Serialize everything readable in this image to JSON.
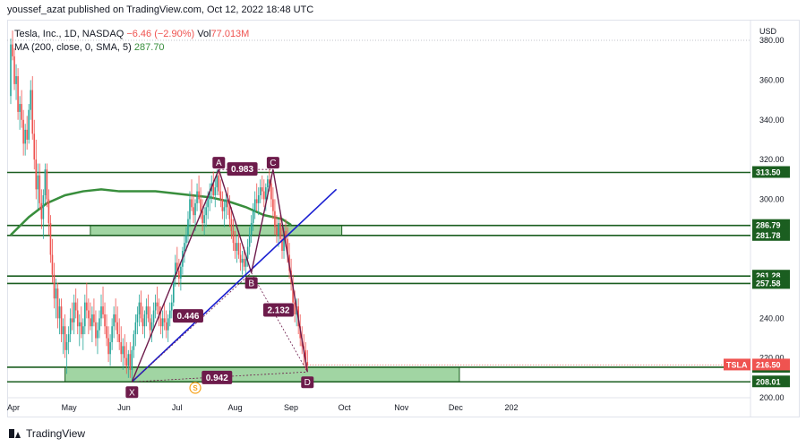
{
  "header": {
    "publisher_line": "youssef_azat published on TradingView.com, Oct 12, 2022 18:48 UTC"
  },
  "legend": {
    "symbol_line_title": "Tesla, Inc., 1D, NASDAQ",
    "change": "−6.46 (−2.90%)",
    "volume_label": "Vol",
    "volume_value": "77.013M",
    "ma_label": "MA (200, close, 0, SMA, 5)",
    "ma_value": "287.70"
  },
  "footer": {
    "brand": "TradingView"
  },
  "colors": {
    "up": "#26a69a",
    "down": "#ef5350",
    "ma": "#388e3c",
    "zone_fill": "#81c784",
    "level_line": "#1b5e20",
    "pattern": "#6d1b4b",
    "trend": "#1a1fd1",
    "tag_bg": "#6d1b4b",
    "price_tag_red": "#ef5350"
  },
  "chart_data": {
    "type": "candlestick",
    "currency": "USD",
    "ylim": [
      200,
      390
    ],
    "y_ticks": [
      "380.00",
      "360.00",
      "340.00",
      "320.00",
      "300.00",
      "240.00",
      "220.00",
      "200.00"
    ],
    "x_ticks": [
      "Apr",
      "May",
      "Jun",
      "Jul",
      "Aug",
      "Sep",
      "Oct",
      "Nov",
      "Dec",
      "202"
    ],
    "levels": [
      {
        "value": 313.5,
        "label": "313.50"
      },
      {
        "value": 286.79,
        "label": "286.79"
      },
      {
        "value": 281.78,
        "label": "281.78"
      },
      {
        "value": 261.28,
        "label": "261.28"
      },
      {
        "value": 257.58,
        "label": "257.58"
      },
      {
        "value": 215.36,
        "label": "215.36"
      },
      {
        "value": 208.01,
        "label": "208.01"
      }
    ],
    "zones": [
      {
        "from": 281.78,
        "to": 286.79,
        "start": "May 15",
        "end": "Oct 1"
      },
      {
        "from": 208.01,
        "to": 215.36,
        "start": "May 1",
        "end": "Dec 5"
      }
    ],
    "current_price": {
      "symbol": "TSLA",
      "value": 216.5,
      "label": "216.50"
    },
    "ma_200": {
      "points": [
        [
          0,
          282
        ],
        [
          10,
          291
        ],
        [
          20,
          298
        ],
        [
          30,
          302
        ],
        [
          40,
          304
        ],
        [
          50,
          305
        ],
        [
          60,
          304
        ],
        [
          70,
          304
        ],
        [
          80,
          304
        ],
        [
          90,
          303
        ],
        [
          100,
          302
        ],
        [
          110,
          301
        ],
        [
          120,
          299
        ],
        [
          130,
          296
        ],
        [
          140,
          292
        ],
        [
          150,
          290
        ],
        [
          155,
          287
        ]
      ]
    },
    "harmonic_pattern": {
      "points": [
        {
          "label": "X",
          "day": 67,
          "price": 208
        },
        {
          "label": "A",
          "day": 115,
          "price": 315
        },
        {
          "label": "B",
          "day": 133,
          "price": 263
        },
        {
          "label": "C",
          "day": 145,
          "price": 315
        },
        {
          "label": "D",
          "day": 164,
          "price": 213
        }
      ],
      "ratios": [
        {
          "label": "0.446",
          "day": 98,
          "price": 241
        },
        {
          "label": "0.983",
          "day": 128,
          "price": 315
        },
        {
          "label": "2.132",
          "day": 148,
          "price": 244
        },
        {
          "label": "0.942",
          "day": 114,
          "price": 210
        }
      ]
    },
    "trendline": {
      "from": [
        67,
        208
      ],
      "to": [
        180,
        305
      ]
    },
    "candles": [
      [
        0,
        352,
        381,
        348,
        378
      ],
      [
        1,
        378,
        385,
        370,
        372
      ],
      [
        2,
        372,
        376,
        355,
        358
      ],
      [
        3,
        358,
        368,
        350,
        362
      ],
      [
        4,
        362,
        366,
        340,
        344
      ],
      [
        5,
        344,
        352,
        335,
        348
      ],
      [
        6,
        348,
        355,
        336,
        340
      ],
      [
        7,
        340,
        345,
        322,
        328
      ],
      [
        8,
        328,
        338,
        322,
        335
      ],
      [
        9,
        335,
        342,
        325,
        330
      ],
      [
        10,
        330,
        348,
        328,
        345
      ],
      [
        11,
        345,
        360,
        340,
        355
      ],
      [
        12,
        355,
        362,
        330,
        333
      ],
      [
        13,
        333,
        340,
        315,
        320
      ],
      [
        14,
        320,
        330,
        300,
        305
      ],
      [
        15,
        305,
        318,
        295,
        312
      ],
      [
        16,
        312,
        318,
        295,
        298
      ],
      [
        17,
        298,
        305,
        285,
        290
      ],
      [
        18,
        290,
        305,
        280,
        302
      ],
      [
        19,
        302,
        318,
        298,
        315
      ],
      [
        20,
        315,
        318,
        296,
        300
      ],
      [
        21,
        300,
        305,
        282,
        288
      ],
      [
        22,
        288,
        292,
        268,
        272
      ],
      [
        23,
        272,
        280,
        258,
        262
      ],
      [
        24,
        262,
        268,
        245,
        250
      ],
      [
        25,
        250,
        260,
        240,
        255
      ],
      [
        26,
        255,
        258,
        235,
        240
      ],
      [
        27,
        240,
        250,
        232,
        246
      ],
      [
        28,
        246,
        250,
        228,
        232
      ],
      [
        29,
        232,
        240,
        222,
        236
      ],
      [
        30,
        236,
        242,
        220,
        224
      ],
      [
        31,
        224,
        232,
        212,
        228
      ],
      [
        32,
        228,
        236,
        222,
        232
      ],
      [
        33,
        232,
        245,
        228,
        240
      ],
      [
        34,
        240,
        248,
        234,
        238
      ],
      [
        35,
        238,
        252,
        232,
        248
      ],
      [
        36,
        248,
        255,
        240,
        244
      ],
      [
        37,
        244,
        250,
        232,
        236
      ],
      [
        38,
        236,
        242,
        226,
        238
      ],
      [
        39,
        238,
        246,
        230,
        232
      ],
      [
        40,
        232,
        240,
        224,
        236
      ],
      [
        41,
        236,
        252,
        232,
        248
      ],
      [
        42,
        248,
        258,
        240,
        244
      ],
      [
        43,
        244,
        250,
        232,
        240
      ],
      [
        44,
        240,
        248,
        234,
        236
      ],
      [
        45,
        236,
        246,
        228,
        242
      ],
      [
        46,
        242,
        250,
        236,
        238
      ],
      [
        47,
        238,
        244,
        226,
        230
      ],
      [
        48,
        230,
        238,
        222,
        234
      ],
      [
        49,
        234,
        244,
        230,
        240
      ],
      [
        50,
        240,
        252,
        236,
        246
      ],
      [
        51,
        246,
        256,
        240,
        242
      ],
      [
        52,
        242,
        248,
        232,
        236
      ],
      [
        53,
        236,
        242,
        226,
        230
      ],
      [
        54,
        230,
        236,
        218,
        222
      ],
      [
        55,
        222,
        232,
        216,
        228
      ],
      [
        56,
        228,
        240,
        224,
        236
      ],
      [
        57,
        236,
        246,
        230,
        242
      ],
      [
        58,
        242,
        250,
        234,
        238
      ],
      [
        59,
        238,
        246,
        228,
        232
      ],
      [
        60,
        232,
        240,
        224,
        228
      ],
      [
        61,
        228,
        236,
        218,
        222
      ],
      [
        62,
        222,
        230,
        214,
        226
      ],
      [
        63,
        226,
        232,
        216,
        220
      ],
      [
        64,
        220,
        228,
        212,
        216
      ],
      [
        65,
        216,
        224,
        210,
        222
      ],
      [
        66,
        222,
        228,
        210,
        214
      ],
      [
        67,
        214,
        226,
        208,
        224
      ],
      [
        68,
        224,
        234,
        220,
        232
      ],
      [
        69,
        232,
        242,
        226,
        238
      ],
      [
        70,
        238,
        246,
        232,
        242
      ],
      [
        71,
        242,
        252,
        236,
        248
      ],
      [
        72,
        248,
        254,
        238,
        240
      ],
      [
        73,
        240,
        246,
        232,
        236
      ],
      [
        74,
        236,
        244,
        230,
        242
      ],
      [
        75,
        242,
        250,
        236,
        246
      ],
      [
        76,
        246,
        252,
        238,
        240
      ],
      [
        77,
        240,
        246,
        230,
        234
      ],
      [
        78,
        234,
        242,
        228,
        238
      ],
      [
        79,
        238,
        248,
        234,
        244
      ],
      [
        80,
        244,
        252,
        240,
        248
      ],
      [
        81,
        248,
        256,
        242,
        246
      ],
      [
        82,
        246,
        250,
        236,
        240
      ],
      [
        83,
        240,
        246,
        232,
        236
      ],
      [
        84,
        236,
        244,
        230,
        240
      ],
      [
        85,
        240,
        248,
        234,
        238
      ],
      [
        86,
        238,
        244,
        230,
        234
      ],
      [
        87,
        234,
        242,
        228,
        240
      ],
      [
        88,
        240,
        248,
        236,
        244
      ],
      [
        89,
        244,
        252,
        240,
        248
      ],
      [
        90,
        248,
        262,
        246,
        260
      ],
      [
        91,
        260,
        272,
        256,
        268
      ],
      [
        92,
        268,
        276,
        262,
        264
      ],
      [
        93,
        264,
        270,
        256,
        260
      ],
      [
        94,
        260,
        268,
        254,
        266
      ],
      [
        95,
        266,
        276,
        262,
        274
      ],
      [
        96,
        274,
        282,
        268,
        278
      ],
      [
        97,
        278,
        286,
        274,
        282
      ],
      [
        98,
        282,
        294,
        278,
        290
      ],
      [
        99,
        290,
        304,
        286,
        300
      ],
      [
        100,
        300,
        310,
        294,
        296
      ],
      [
        101,
        296,
        302,
        288,
        292
      ],
      [
        102,
        292,
        300,
        284,
        298
      ],
      [
        103,
        298,
        308,
        294,
        304
      ],
      [
        104,
        304,
        312,
        298,
        300
      ],
      [
        105,
        300,
        306,
        290,
        294
      ],
      [
        106,
        294,
        300,
        284,
        288
      ],
      [
        107,
        288,
        296,
        282,
        292
      ],
      [
        108,
        292,
        300,
        286,
        296
      ],
      [
        109,
        296,
        304,
        290,
        300
      ],
      [
        110,
        300,
        308,
        294,
        304
      ],
      [
        111,
        304,
        312,
        298,
        308
      ],
      [
        112,
        308,
        314,
        300,
        302
      ],
      [
        113,
        302,
        310,
        296,
        306
      ],
      [
        114,
        306,
        315,
        302,
        312
      ],
      [
        115,
        312,
        315,
        302,
        304
      ],
      [
        116,
        304,
        310,
        296,
        300
      ],
      [
        117,
        300,
        304,
        290,
        294
      ],
      [
        118,
        294,
        300,
        286,
        296
      ],
      [
        119,
        296,
        304,
        290,
        300
      ],
      [
        120,
        300,
        306,
        292,
        296
      ],
      [
        121,
        296,
        302,
        286,
        290
      ],
      [
        122,
        290,
        296,
        280,
        284
      ],
      [
        123,
        284,
        290,
        274,
        278
      ],
      [
        124,
        278,
        284,
        270,
        274
      ],
      [
        125,
        274,
        282,
        268,
        278
      ],
      [
        126,
        278,
        284,
        270,
        272
      ],
      [
        127,
        272,
        278,
        264,
        268
      ],
      [
        128,
        268,
        274,
        262,
        270
      ],
      [
        129,
        270,
        276,
        264,
        266
      ],
      [
        130,
        266,
        272,
        262,
        270
      ],
      [
        131,
        270,
        280,
        266,
        276
      ],
      [
        132,
        276,
        286,
        272,
        282
      ],
      [
        133,
        282,
        292,
        278,
        288
      ],
      [
        134,
        288,
        298,
        284,
        294
      ],
      [
        135,
        294,
        304,
        290,
        300
      ],
      [
        136,
        300,
        308,
        294,
        298
      ],
      [
        137,
        298,
        306,
        292,
        302
      ],
      [
        138,
        302,
        310,
        298,
        306
      ],
      [
        139,
        306,
        312,
        300,
        304
      ],
      [
        140,
        304,
        310,
        296,
        300
      ],
      [
        141,
        300,
        308,
        294,
        306
      ],
      [
        142,
        306,
        312,
        300,
        310
      ],
      [
        143,
        310,
        315,
        304,
        308
      ],
      [
        144,
        308,
        312,
        296,
        300
      ],
      [
        145,
        300,
        306,
        290,
        294
      ],
      [
        146,
        294,
        300,
        282,
        286
      ],
      [
        147,
        286,
        292,
        278,
        282
      ],
      [
        148,
        282,
        290,
        276,
        288
      ],
      [
        149,
        288,
        292,
        278,
        280
      ],
      [
        150,
        280,
        286,
        270,
        274
      ],
      [
        151,
        274,
        286,
        270,
        284
      ],
      [
        152,
        284,
        290,
        276,
        280
      ],
      [
        153,
        280,
        286,
        268,
        272
      ],
      [
        154,
        272,
        278,
        260,
        264
      ],
      [
        155,
        264,
        270,
        254,
        258
      ],
      [
        156,
        258,
        262,
        244,
        248
      ],
      [
        157,
        248,
        254,
        238,
        242
      ],
      [
        158,
        242,
        250,
        236,
        246
      ],
      [
        159,
        246,
        250,
        232,
        236
      ],
      [
        160,
        236,
        242,
        226,
        230
      ],
      [
        161,
        230,
        236,
        222,
        226
      ],
      [
        162,
        226,
        232,
        216,
        224
      ],
      [
        163,
        224,
        228,
        214,
        218
      ],
      [
        164,
        218,
        224,
        213,
        216.5
      ]
    ]
  }
}
